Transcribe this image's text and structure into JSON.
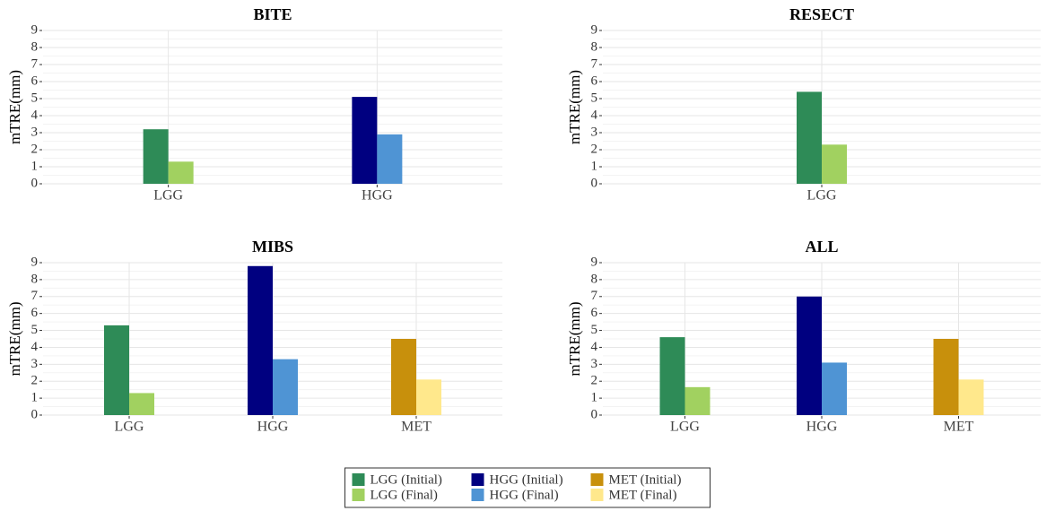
{
  "legend": "bottom",
  "chart_data": [
    {
      "type": "bar",
      "title": "BITE",
      "ylabel": "mTRE(mm)",
      "categories": [
        "LGG",
        "HGG"
      ],
      "series": [
        {
          "color": "#2e8b57",
          "values": [
            3.2,
            null
          ]
        },
        {
          "color": "#a1d160",
          "values": [
            1.3,
            null
          ]
        },
        {
          "color": "#000080",
          "values": [
            null,
            5.1
          ]
        },
        {
          "color": "#4f94d4",
          "values": [
            null,
            2.9
          ]
        }
      ],
      "ylim": [
        0,
        9
      ],
      "yticks": [
        0,
        1,
        2,
        3,
        4,
        5,
        6,
        7,
        8,
        9
      ],
      "grid": true,
      "minor_grid": true
    },
    {
      "type": "bar",
      "title": "RESECT",
      "ylabel": "mTRE(mm)",
      "categories": [
        "LGG"
      ],
      "series": [
        {
          "color": "#2e8b57",
          "values": [
            5.4
          ]
        },
        {
          "color": "#a1d160",
          "values": [
            2.3
          ]
        }
      ],
      "ylim": [
        0,
        9
      ],
      "yticks": [
        0,
        1,
        2,
        3,
        4,
        5,
        6,
        7,
        8,
        9
      ],
      "grid": true,
      "minor_grid": true
    },
    {
      "type": "bar",
      "title": "MIBS",
      "ylabel": "mTRE(mm)",
      "categories": [
        "LGG",
        "HGG",
        "MET"
      ],
      "series": [
        {
          "color": "#2e8b57",
          "values": [
            5.3,
            null,
            null
          ]
        },
        {
          "color": "#a1d160",
          "values": [
            1.3,
            null,
            null
          ]
        },
        {
          "color": "#000080",
          "values": [
            null,
            8.8,
            null
          ]
        },
        {
          "color": "#4f94d4",
          "values": [
            null,
            3.3,
            null
          ]
        },
        {
          "color": "#c8900c",
          "values": [
            null,
            null,
            4.5
          ]
        },
        {
          "color": "#ffe88c",
          "values": [
            null,
            null,
            2.1
          ]
        }
      ],
      "ylim": [
        0,
        9
      ],
      "yticks": [
        0,
        1,
        2,
        3,
        4,
        5,
        6,
        7,
        8,
        9
      ],
      "grid": true,
      "minor_grid": true
    },
    {
      "type": "bar",
      "title": "ALL",
      "ylabel": "mTRE(mm)",
      "categories": [
        "LGG",
        "HGG",
        "MET"
      ],
      "series": [
        {
          "name": "LGG (Initial)",
          "color": "#2e8b57",
          "values": [
            4.6,
            null,
            null
          ]
        },
        {
          "name": "LGG (Final)",
          "color": "#a1d160",
          "values": [
            1.65,
            null,
            null
          ]
        },
        {
          "name": "HGG (Initial)",
          "color": "#000080",
          "values": [
            null,
            7.0,
            null
          ]
        },
        {
          "name": "HGG (Final)",
          "color": "#4f94d4",
          "values": [
            null,
            3.1,
            null
          ]
        },
        {
          "name": "MET (Initial)",
          "color": "#c8900c",
          "values": [
            null,
            null,
            4.5
          ]
        },
        {
          "name": "MET (Final)",
          "color": "#ffe88c",
          "values": [
            null,
            null,
            2.1
          ]
        }
      ],
      "ylim": [
        0,
        9
      ],
      "yticks": [
        0,
        1,
        2,
        3,
        4,
        5,
        6,
        7,
        8,
        9
      ],
      "grid": true,
      "minor_grid": true
    }
  ]
}
